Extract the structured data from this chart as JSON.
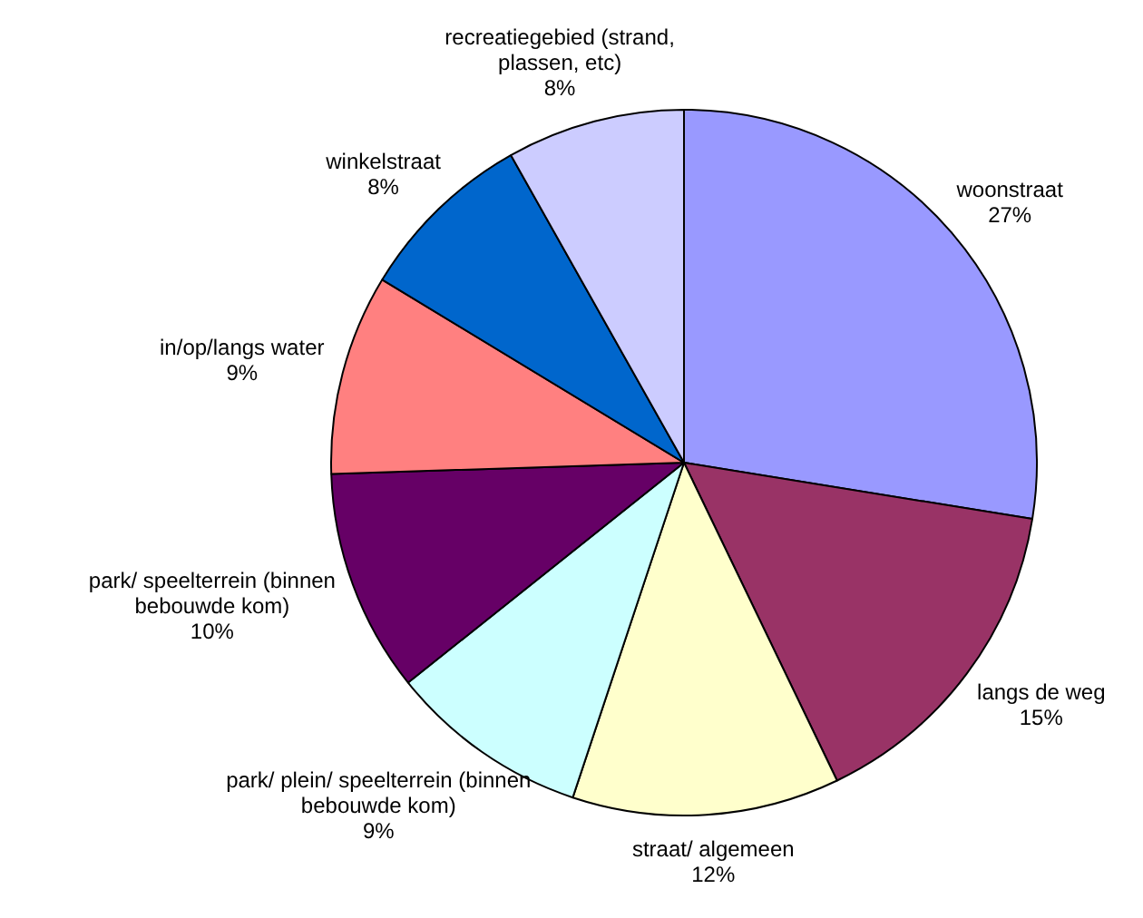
{
  "chart_data": {
    "type": "pie",
    "categories": [
      "woonstraat",
      "langs de weg",
      "straat/ algemeen",
      "park/ plein/ speelterrein (binnen bebouwde kom)",
      "park/ speelterrein (binnen bebouwde kom)",
      "in/op/langs water",
      "winkelstraat",
      "recreatiegebied (strand, plassen, etc)"
    ],
    "values": [
      27,
      15,
      12,
      9,
      10,
      9,
      8,
      8
    ],
    "value_labels": [
      "27%",
      "15%",
      "12%",
      "9%",
      "10%",
      "9%",
      "8%",
      "8%"
    ],
    "colors": [
      "#9999ff",
      "#993366",
      "#ffffcc",
      "#ccffff",
      "#660066",
      "#ff8080",
      "#0066cc",
      "#ccccff"
    ],
    "legend": false
  }
}
